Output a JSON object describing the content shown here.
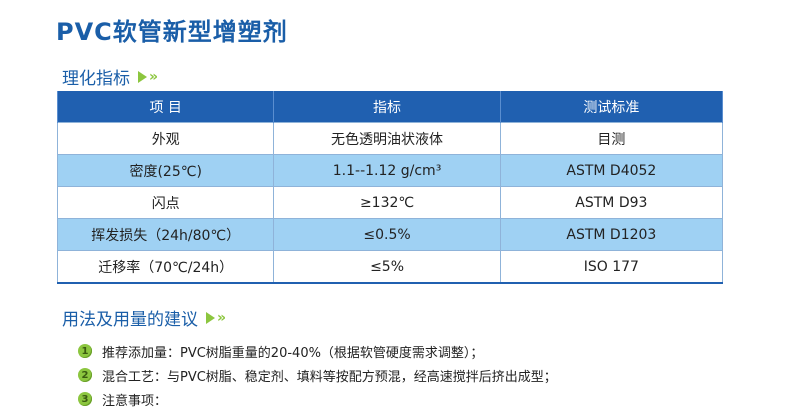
{
  "title": "PVC软管新型增塑剂",
  "section1": {
    "heading": "理化指标"
  },
  "table": {
    "headers": [
      "项 目",
      "指标",
      "测试标准"
    ],
    "rows": [
      [
        "外观",
        "无色透明油状液体",
        "目测"
      ],
      [
        "密度(25℃)",
        "1.1--1.12 g/cm³",
        "ASTM D4052"
      ],
      [
        "闪点",
        "≥132℃",
        "ASTM D93"
      ],
      [
        "挥发损失（24h/80℃）",
        "≤0.5%",
        "ASTM D1203"
      ],
      [
        "迁移率（70℃/24h）",
        "≤5%",
        "ISO 177"
      ]
    ]
  },
  "section2": {
    "heading": "用法及用量的建议"
  },
  "notes": [
    {
      "num": "1",
      "text": "推荐添加量：PVC树脂重量的20-40%（根据软管硬度需求调整）；"
    },
    {
      "num": "2",
      "text": "混合工艺：与PVC树脂、稳定剂、填料等按配方预混，经高速搅拌后挤出成型；"
    },
    {
      "num": "3",
      "text": "注意事项："
    }
  ],
  "colors": {
    "accent": "#1a5ea8",
    "header_bg": "#2060b0",
    "row_alt": "#9fd1f3",
    "arrow": "#8cc63f"
  }
}
